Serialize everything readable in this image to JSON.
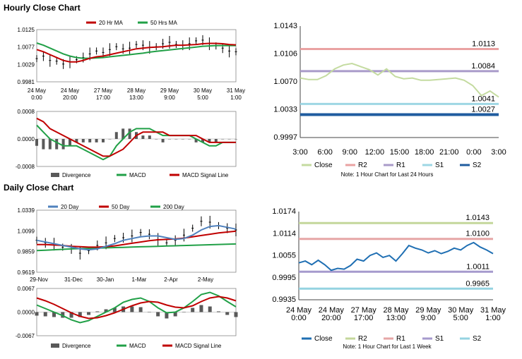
{
  "sections": {
    "hourly_title": "Hourly Close Chart",
    "daily_title": "Daily Close Chart"
  },
  "colors": {
    "ma_short": "#c00000",
    "ma_long": "#21a047",
    "ma_20day": "#4f81bd",
    "macd": "#21a047",
    "signal": "#c00000",
    "divergence": "#595959",
    "close_light": "#c4dba0",
    "close_dark": "#1f6fb3",
    "r2_hourly": "#eaa2a2",
    "r1_hourly": "#a99bc9",
    "s1_hourly": "#9ed7e4",
    "s2_hourly": "#1f5c9f",
    "r2_daily": "#c4d79b",
    "r1_daily": "#e6a6a6",
    "s1_daily": "#a69acd",
    "s2_daily": "#95d3e1"
  },
  "chart_data": [
    {
      "id": "hourly_price",
      "type": "line",
      "legend": [
        "20 Hr MA",
        "50 Hrs MA"
      ],
      "y_ticks": [
        "0.9981",
        "1.0029",
        "1.0077",
        "1.0125"
      ],
      "ylim": [
        0.9981,
        1.0125
      ],
      "x_labels": [
        [
          "24 May",
          "0:00"
        ],
        [
          "24 May",
          "20:00"
        ],
        [
          "27 May",
          "17:00"
        ],
        [
          "28 May",
          "13:00"
        ],
        [
          "29 May",
          "9:00"
        ],
        [
          "30 May",
          "5:00"
        ],
        [
          "31 May",
          "1:00"
        ]
      ],
      "series": [
        {
          "name": "Close",
          "values": [
            1.0045,
            1.0052,
            1.004,
            1.0038,
            1.003,
            1.0036,
            1.0042,
            1.0048,
            1.0058,
            1.0066,
            1.0062,
            1.007,
            1.0078,
            1.0072,
            1.0074,
            1.0084,
            1.0082,
            1.0076,
            1.0078,
            1.0086,
            1.009,
            1.0084,
            1.0082,
            1.0086,
            1.0094,
            1.0096,
            1.0086,
            1.008,
            1.0074,
            1.0066,
            1.0064
          ]
        },
        {
          "name": "20 Hr MA",
          "values": [
            1.007,
            1.0064,
            1.0056,
            1.0048,
            1.004,
            1.0036,
            1.0036,
            1.004,
            1.0046,
            1.005,
            1.0052,
            1.0056,
            1.006,
            1.0064,
            1.0068,
            1.0072,
            1.0074,
            1.0076,
            1.0077,
            1.0078,
            1.008,
            1.0082,
            1.0082,
            1.0083,
            1.0084,
            1.0086,
            1.0087,
            1.0087,
            1.0086,
            1.0084,
            1.0083
          ]
        },
        {
          "name": "50 Hrs MA",
          "values": [
            1.0088,
            1.0082,
            1.0074,
            1.0066,
            1.0058,
            1.0052,
            1.0048,
            1.0046,
            1.0046,
            1.0047,
            1.0048,
            1.005,
            1.0052,
            1.0054,
            1.0056,
            1.0058,
            1.006,
            1.0063,
            1.0065,
            1.0067,
            1.0069,
            1.0071,
            1.0073,
            1.0075,
            1.0077,
            1.0079,
            1.008,
            1.0081,
            1.0081,
            1.0081,
            1.0081
          ]
        }
      ]
    },
    {
      "id": "hourly_macd",
      "type": "line",
      "legend": [
        "Divergence",
        "MACD",
        "MACD Signal Line"
      ],
      "y_ticks": [
        "-0.0008",
        "0.0000",
        "0.0008"
      ],
      "ylim": [
        -0.0008,
        0.0008
      ],
      "series": [
        {
          "name": "MACD",
          "values": [
            0.0004,
            0.0002,
            0.0,
            -0.0001,
            -0.0002,
            -0.0002,
            -0.0002,
            -0.0003,
            -0.0004,
            -0.0005,
            -0.0006,
            -0.0005,
            -0.0002,
            0.0,
            0.0002,
            0.0003,
            0.0003,
            0.0003,
            0.0002,
            0.0001,
            0.0001,
            0.0001,
            0.0001,
            0.0001,
            0.0,
            -0.0001,
            -0.0002,
            -0.0002,
            -0.0001,
            -0.0001,
            -0.0001
          ]
        },
        {
          "name": "MACD Signal Line",
          "values": [
            0.0006,
            0.0005,
            0.0003,
            0.0002,
            0.0001,
            0.0,
            -0.0001,
            -0.0002,
            -0.0003,
            -0.0004,
            -0.0005,
            -0.0005,
            -0.0004,
            -0.0003,
            -0.0001,
            0.0001,
            0.0002,
            0.0002,
            0.0002,
            0.0002,
            0.0001,
            0.0001,
            0.0001,
            0.0001,
            0.0001,
            0.0,
            -0.0001,
            -0.0001,
            -0.0001,
            -0.0001,
            -0.0001
          ]
        },
        {
          "name": "Divergence",
          "values": [
            -0.0002,
            -0.0003,
            -0.0003,
            -0.0003,
            -0.0003,
            -0.0002,
            -0.0001,
            -0.0001,
            -0.0001,
            -0.0001,
            -0.0001,
            0.0,
            0.0002,
            0.0003,
            0.0003,
            0.0002,
            0.0001,
            0.0001,
            0.0,
            -0.0001,
            0.0,
            0.0,
            0.0,
            0.0,
            -0.0001,
            -0.0001,
            -0.0001,
            -0.0001,
            0.0,
            0.0,
            0.0
          ]
        }
      ]
    },
    {
      "id": "hourly_levels",
      "type": "line",
      "y_ticks": [
        "0.9997",
        "1.0033",
        "1.0070",
        "1.0106",
        "1.0143"
      ],
      "ylim": [
        0.9997,
        1.0143
      ],
      "x_labels": [
        "3:00",
        "6:00",
        "9:00",
        "12:00",
        "15:00",
        "18:00",
        "21:00",
        "0:00",
        "3:00"
      ],
      "levels": [
        {
          "name": "R2",
          "value": 1.0113,
          "label": "1.0113"
        },
        {
          "name": "R1",
          "value": 1.0084,
          "label": "1.0084"
        },
        {
          "name": "S1",
          "value": 1.0041,
          "label": "1.0041"
        },
        {
          "name": "S2",
          "value": 1.0027,
          "label": "1.0027"
        }
      ],
      "series": [
        {
          "name": "Close",
          "values": [
            1.0075,
            1.0073,
            1.0073,
            1.0078,
            1.0087,
            1.0092,
            1.0094,
            1.009,
            1.0086,
            1.0079,
            1.0087,
            1.0077,
            1.0074,
            1.0075,
            1.0072,
            1.0072,
            1.0073,
            1.0074,
            1.0075,
            1.0072,
            1.0065,
            1.0052,
            1.0058,
            1.005
          ]
        }
      ],
      "legend": [
        "Close",
        "R2",
        "R1",
        "S1",
        "S2"
      ],
      "note": "Note: 1 Hour Chart for Last 24 Hours"
    },
    {
      "id": "daily_price",
      "type": "line",
      "legend": [
        "20 Day",
        "50 Day",
        "200 Day"
      ],
      "y_ticks": [
        "0.9619",
        "0.9859",
        "1.0099",
        "1.0339"
      ],
      "ylim": [
        0.9619,
        1.0339
      ],
      "x_labels": [
        "29-Nov",
        "31-Dec",
        "30-Jan",
        "1-Mar",
        "2-Apr",
        "2-May"
      ],
      "series": [
        {
          "name": "Close",
          "values": [
            0.999,
            0.996,
            0.9945,
            0.991,
            0.989,
            0.984,
            0.987,
            0.993,
            0.996,
            1.001,
            1.002,
            1.004,
            1.008,
            1.006,
            1.0,
            0.996,
            0.999,
            1.005,
            1.013,
            1.021,
            1.02,
            1.016,
            1.013,
            1.011
          ]
        },
        {
          "name": "20 Day",
          "values": [
            0.999,
            0.997,
            0.995,
            0.993,
            0.991,
            0.989,
            0.988,
            0.989,
            0.992,
            0.995,
            0.999,
            1.001,
            1.003,
            1.004,
            1.004,
            1.002,
            1.0,
            1.001,
            1.005,
            1.011,
            1.015,
            1.016,
            1.014,
            1.012
          ]
        },
        {
          "name": "50 Day",
          "values": [
            0.994,
            0.994,
            0.9935,
            0.993,
            0.992,
            0.9915,
            0.991,
            0.991,
            0.9915,
            0.9925,
            0.994,
            0.9955,
            0.997,
            0.9985,
            0.9995,
            1.0,
            1.0005,
            1.0015,
            1.003,
            1.0045,
            1.006,
            1.0075,
            1.0085,
            1.0095
          ]
        },
        {
          "name": "200 Day",
          "values": [
            0.987,
            0.9875,
            0.988,
            0.9885,
            0.989,
            0.9893,
            0.9896,
            0.9899,
            0.9902,
            0.9905,
            0.9908,
            0.9911,
            0.9914,
            0.9917,
            0.992,
            0.9923,
            0.9926,
            0.9929,
            0.9932,
            0.9935,
            0.9938,
            0.9941,
            0.9944,
            0.9947
          ]
        }
      ]
    },
    {
      "id": "daily_macd",
      "type": "line",
      "legend": [
        "Divergence",
        "MACD",
        "MACD Signal Line"
      ],
      "y_ticks": [
        "-0.0067",
        "0.0000",
        "0.0067"
      ],
      "ylim": [
        -0.0067,
        0.0067
      ],
      "series": [
        {
          "name": "MACD",
          "values": [
            0.002,
            0.001,
            0.0,
            -0.001,
            -0.0022,
            -0.003,
            -0.0024,
            -0.0012,
            0.0,
            0.0012,
            0.0028,
            0.0036,
            0.004,
            0.003,
            0.0012,
            -0.0002,
            0.0,
            0.0012,
            0.003,
            0.005,
            0.0056,
            0.0046,
            0.003,
            0.0015
          ]
        },
        {
          "name": "MACD Signal Line",
          "values": [
            0.004,
            0.0032,
            0.0022,
            0.001,
            -0.0002,
            -0.0012,
            -0.0018,
            -0.0016,
            -0.001,
            -0.0002,
            0.0008,
            0.0018,
            0.0026,
            0.003,
            0.0028,
            0.002,
            0.0014,
            0.0012,
            0.0018,
            0.003,
            0.004,
            0.0044,
            0.004,
            0.0032
          ]
        },
        {
          "name": "Divergence",
          "values": [
            -0.001,
            -0.0012,
            -0.0014,
            -0.0016,
            -0.0016,
            -0.0014,
            -0.0008,
            0.0002,
            0.0008,
            0.0012,
            0.0016,
            0.0016,
            0.0014,
            0.0,
            -0.0012,
            -0.0018,
            -0.0012,
            0.0,
            0.0012,
            0.002,
            0.0016,
            0.0002,
            -0.0008,
            -0.0014
          ]
        }
      ]
    },
    {
      "id": "daily_levels",
      "type": "line",
      "y_ticks": [
        "0.9935",
        "0.9995",
        "1.0055",
        "1.0114",
        "1.0174"
      ],
      "ylim": [
        0.9935,
        1.0174
      ],
      "x_labels": [
        [
          "24 May",
          "0:00"
        ],
        [
          "24 May",
          "20:00"
        ],
        [
          "27 May",
          "17:00"
        ],
        [
          "28 May",
          "13:00"
        ],
        [
          "29 May",
          "9:00"
        ],
        [
          "30 May",
          "5:00"
        ],
        [
          "31 May",
          "1:00"
        ]
      ],
      "levels": [
        {
          "name": "R2",
          "value": 1.0143,
          "label": "1.0143"
        },
        {
          "name": "R1",
          "value": 1.01,
          "label": "1.0100"
        },
        {
          "name": "S1",
          "value": 1.0011,
          "label": "1.0011"
        },
        {
          "name": "S2",
          "value": 0.9965,
          "label": "0.9965"
        }
      ],
      "series": [
        {
          "name": "Close",
          "values": [
            1.0035,
            1.004,
            1.003,
            1.0042,
            1.003,
            1.0015,
            1.002,
            1.0018,
            1.0028,
            1.0045,
            1.004,
            1.0055,
            1.0062,
            1.005,
            1.0055,
            1.004,
            1.006,
            1.0082,
            1.0075,
            1.007,
            1.0062,
            1.0068,
            1.006,
            1.0066,
            1.0075,
            1.007,
            1.0082,
            1.009,
            1.0078,
            1.007,
            1.006
          ]
        }
      ],
      "legend": [
        "Close",
        "R2",
        "R1",
        "S1",
        "S2"
      ],
      "note": "Note: 1 Hour Chart for Last 1 Week"
    }
  ]
}
